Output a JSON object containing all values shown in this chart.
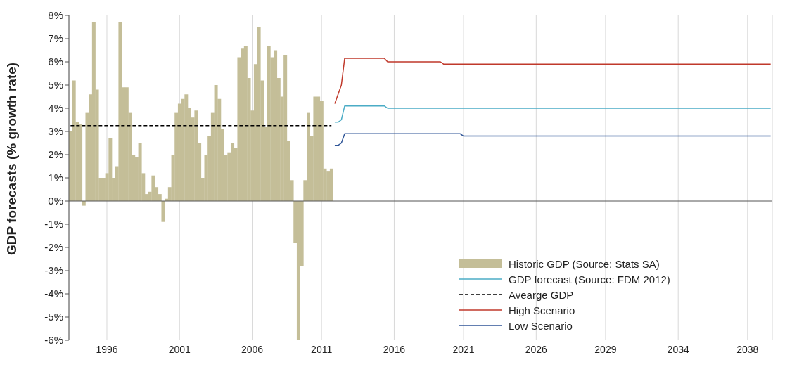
{
  "chart_data": {
    "type": "bar",
    "ylabel": "GDP forecasts (% growth rate)",
    "categories": [
      null,
      null,
      null,
      null,
      null,
      null,
      null,
      null,
      null,
      null,
      null,
      "1996",
      null,
      null,
      null,
      null,
      null,
      null,
      null,
      null,
      null,
      null,
      null,
      null,
      null,
      null,
      null,
      null,
      null,
      null,
      null,
      null,
      null,
      "2001",
      null,
      null,
      null,
      null,
      null,
      null,
      null,
      null,
      null,
      null,
      null,
      null,
      null,
      null,
      null,
      null,
      null,
      null,
      null,
      null,
      null,
      "2006",
      null,
      null,
      null,
      null,
      null,
      null,
      null,
      null,
      null,
      null,
      null,
      null,
      null,
      null,
      null,
      null,
      null,
      null,
      null,
      null,
      "2011",
      null,
      null,
      null,
      null,
      null,
      null,
      null,
      null,
      null,
      null,
      null,
      null,
      null,
      null,
      null,
      null,
      null,
      null,
      null,
      null,
      null,
      "2016",
      null,
      null,
      null,
      null,
      null,
      null,
      null,
      null,
      null,
      null,
      null,
      null,
      null,
      null,
      null,
      null,
      null,
      null,
      null,
      null,
      "2021",
      null,
      null,
      null,
      null,
      null,
      null,
      null,
      null,
      null,
      null,
      null,
      null,
      null,
      null,
      null,
      null,
      null,
      null,
      null,
      null,
      null,
      "2026",
      null,
      null,
      null,
      null,
      null,
      null,
      null,
      null,
      null,
      null,
      null,
      null,
      null,
      null,
      null,
      null,
      null,
      null,
      null,
      null,
      "2029",
      null,
      null,
      null,
      null,
      null,
      null,
      null,
      null,
      null,
      null,
      null,
      null,
      null,
      null,
      null,
      null,
      null,
      null,
      null,
      null,
      null,
      "2034",
      null,
      null,
      null,
      null,
      null,
      null,
      null,
      null,
      null,
      null,
      null,
      null,
      null,
      null,
      null,
      null,
      null,
      null,
      null,
      null,
      "2038",
      null,
      null,
      null,
      null,
      null,
      null,
      null
    ],
    "series": [
      {
        "name": "Historic GDP (Source: Stats SA)",
        "color": "#c4be98",
        "values": [
          3.0,
          5.2,
          3.4,
          3.3,
          -0.2,
          3.8,
          4.6,
          7.7,
          4.8,
          1.0,
          1.0,
          1.2,
          2.7,
          1.0,
          1.5,
          7.7,
          4.9,
          4.9,
          3.8,
          2.0,
          1.9,
          2.5,
          1.2,
          0.3,
          0.4,
          1.1,
          0.6,
          0.3,
          -0.9,
          0.1,
          0.6,
          2.0,
          3.8,
          4.2,
          4.4,
          4.6,
          4.0,
          3.6,
          3.9,
          2.5,
          1.0,
          2.0,
          2.8,
          3.8,
          5.0,
          4.4,
          3.1,
          2.0,
          2.1,
          2.5,
          2.3,
          6.2,
          6.6,
          6.7,
          5.3,
          3.9,
          5.9,
          7.5,
          5.2,
          3.2,
          6.7,
          6.2,
          6.5,
          5.3,
          4.5,
          6.3,
          2.6,
          0.9,
          -1.8,
          -6.0,
          -2.8,
          0.9,
          3.8,
          2.8,
          4.5,
          4.5,
          4.3,
          1.4,
          1.3,
          1.4,
          null,
          null,
          null,
          null,
          null,
          null,
          null,
          null,
          null,
          null,
          null,
          null,
          null,
          null,
          null,
          null,
          null,
          null,
          null,
          null,
          null,
          null,
          null,
          null,
          null,
          null,
          null,
          null,
          null,
          null,
          null,
          null,
          null,
          null,
          null,
          null,
          null,
          null,
          null,
          null,
          null,
          null,
          null,
          null,
          null,
          null,
          null,
          null,
          null,
          null,
          null,
          null,
          null,
          null,
          null,
          null,
          null,
          null,
          null,
          null,
          null,
          null,
          null,
          null,
          null,
          null,
          null,
          null,
          null,
          null,
          null,
          null,
          null,
          null,
          null,
          null,
          null,
          null,
          null,
          null,
          null,
          null,
          null,
          null,
          null,
          null,
          null,
          null,
          null,
          null,
          null,
          null,
          null,
          null,
          null,
          null,
          null,
          null,
          null,
          null,
          null,
          null,
          null,
          null,
          null,
          null,
          null,
          null,
          null,
          null,
          null,
          null,
          null,
          null,
          null,
          null,
          null,
          null,
          null,
          null,
          null,
          null,
          null,
          null,
          null,
          null,
          null,
          null,
          null,
          null,
          null,
          null,
          null
        ]
      },
      {
        "name": "GDP forecast (Source: FDM 2012)",
        "type": "line",
        "color": "#4bacc6",
        "values": [
          null,
          null,
          null,
          null,
          null,
          null,
          null,
          null,
          null,
          null,
          null,
          null,
          null,
          null,
          null,
          null,
          null,
          null,
          null,
          null,
          null,
          null,
          null,
          null,
          null,
          null,
          null,
          null,
          null,
          null,
          null,
          null,
          null,
          null,
          null,
          null,
          null,
          null,
          null,
          null,
          null,
          null,
          null,
          null,
          null,
          null,
          null,
          null,
          null,
          null,
          null,
          null,
          null,
          null,
          null,
          null,
          null,
          null,
          null,
          null,
          null,
          null,
          null,
          null,
          null,
          null,
          null,
          null,
          null,
          null,
          null,
          null,
          null,
          null,
          null,
          null,
          null,
          null,
          null,
          null,
          3.4,
          3.4,
          3.5,
          4.1,
          4.1,
          4.1,
          4.1,
          4.1,
          4.1,
          4.1,
          4.1,
          4.1,
          4.1,
          4.1,
          4.1,
          4.1,
          4.0,
          4.0,
          4.0,
          4.0,
          4.0,
          4.0,
          4.0,
          4.0,
          4.0,
          4.0,
          4.0,
          4.0,
          4.0,
          4.0,
          4.0,
          4.0,
          4.0,
          4.0,
          4.0,
          4.0,
          4.0,
          4.0,
          4.0,
          4.0,
          4.0,
          4.0,
          4.0,
          4.0,
          4.0,
          4.0,
          4.0,
          4.0,
          4.0,
          4.0,
          4.0,
          4.0,
          4.0,
          4.0,
          4.0,
          4.0,
          4.0,
          4.0,
          4.0,
          4.0,
          4.0,
          4.0,
          4.0,
          4.0,
          4.0,
          4.0,
          4.0,
          4.0,
          4.0,
          4.0,
          4.0,
          4.0,
          4.0,
          4.0,
          4.0,
          4.0,
          4.0,
          4.0,
          4.0,
          4.0,
          4.0,
          4.0,
          4.0,
          4.0,
          4.0,
          4.0,
          4.0,
          4.0,
          4.0,
          4.0,
          4.0,
          4.0,
          4.0,
          4.0,
          4.0,
          4.0,
          4.0,
          4.0,
          4.0,
          4.0,
          4.0,
          4.0,
          4.0,
          4.0,
          4.0,
          4.0,
          4.0,
          4.0,
          4.0,
          4.0,
          4.0,
          4.0,
          4.0,
          4.0,
          4.0,
          4.0,
          4.0,
          4.0,
          4.0,
          4.0,
          4.0,
          4.0,
          4.0,
          4.0,
          4.0,
          4.0,
          4.0,
          4.0,
          4.0,
          4.0,
          4.0,
          4.0,
          4.0
        ]
      },
      {
        "name": "Avearge GDP",
        "type": "line",
        "color": "#000000",
        "line_style": "dashed",
        "values": [
          3.25,
          3.25,
          3.25,
          3.25,
          3.25,
          3.25,
          3.25,
          3.25,
          3.25,
          3.25,
          3.25,
          3.25,
          3.25,
          3.25,
          3.25,
          3.25,
          3.25,
          3.25,
          3.25,
          3.25,
          3.25,
          3.25,
          3.25,
          3.25,
          3.25,
          3.25,
          3.25,
          3.25,
          3.25,
          3.25,
          3.25,
          3.25,
          3.25,
          3.25,
          3.25,
          3.25,
          3.25,
          3.25,
          3.25,
          3.25,
          3.25,
          3.25,
          3.25,
          3.25,
          3.25,
          3.25,
          3.25,
          3.25,
          3.25,
          3.25,
          3.25,
          3.25,
          3.25,
          3.25,
          3.25,
          3.25,
          3.25,
          3.25,
          3.25,
          3.25,
          3.25,
          3.25,
          3.25,
          3.25,
          3.25,
          3.25,
          3.25,
          3.25,
          3.25,
          3.25,
          3.25,
          3.25,
          3.25,
          3.25,
          3.25,
          3.25,
          3.25,
          3.25,
          3.25,
          3.25,
          null,
          null,
          null,
          null,
          null,
          null,
          null,
          null,
          null,
          null,
          null,
          null,
          null,
          null,
          null,
          null,
          null,
          null,
          null,
          null,
          null,
          null,
          null,
          null,
          null,
          null,
          null,
          null,
          null,
          null,
          null,
          null,
          null,
          null,
          null,
          null,
          null,
          null,
          null,
          null,
          null,
          null,
          null,
          null,
          null,
          null,
          null,
          null,
          null,
          null,
          null,
          null,
          null,
          null,
          null,
          null,
          null,
          null,
          null,
          null,
          null,
          null,
          null,
          null,
          null,
          null,
          null,
          null,
          null,
          null,
          null,
          null,
          null,
          null,
          null,
          null,
          null,
          null,
          null,
          null,
          null,
          null,
          null,
          null,
          null,
          null,
          null,
          null,
          null,
          null,
          null,
          null,
          null,
          null,
          null,
          null,
          null,
          null,
          null,
          null,
          null,
          null,
          null,
          null,
          null,
          null,
          null,
          null,
          null,
          null,
          null,
          null,
          null,
          null,
          null,
          null,
          null,
          null,
          null,
          null,
          null,
          null,
          null,
          null,
          null,
          null,
          null,
          null,
          null,
          null,
          null,
          null,
          null
        ]
      },
      {
        "name": "High Scenario",
        "type": "line",
        "color": "#c0392b",
        "values": [
          null,
          null,
          null,
          null,
          null,
          null,
          null,
          null,
          null,
          null,
          null,
          null,
          null,
          null,
          null,
          null,
          null,
          null,
          null,
          null,
          null,
          null,
          null,
          null,
          null,
          null,
          null,
          null,
          null,
          null,
          null,
          null,
          null,
          null,
          null,
          null,
          null,
          null,
          null,
          null,
          null,
          null,
          null,
          null,
          null,
          null,
          null,
          null,
          null,
          null,
          null,
          null,
          null,
          null,
          null,
          null,
          null,
          null,
          null,
          null,
          null,
          null,
          null,
          null,
          null,
          null,
          null,
          null,
          null,
          null,
          null,
          null,
          null,
          null,
          null,
          null,
          null,
          null,
          null,
          null,
          4.2,
          4.6,
          5.0,
          6.15,
          6.15,
          6.15,
          6.15,
          6.15,
          6.15,
          6.15,
          6.15,
          6.15,
          6.15,
          6.15,
          6.15,
          6.15,
          6.0,
          6.0,
          6.0,
          6.0,
          6.0,
          6.0,
          6.0,
          6.0,
          6.0,
          6.0,
          6.0,
          6.0,
          6.0,
          6.0,
          6.0,
          6.0,
          6.0,
          5.9,
          5.9,
          5.9,
          5.9,
          5.9,
          5.9,
          5.9,
          5.9,
          5.9,
          5.9,
          5.9,
          5.9,
          5.9,
          5.9,
          5.9,
          5.9,
          5.9,
          5.9,
          5.9,
          5.9,
          5.9,
          5.9,
          5.9,
          5.9,
          5.9,
          5.9,
          5.9,
          5.9,
          5.9,
          5.9,
          5.9,
          5.9,
          5.9,
          5.9,
          5.9,
          5.9,
          5.9,
          5.9,
          5.9,
          5.9,
          5.9,
          5.9,
          5.9,
          5.9,
          5.9,
          5.9,
          5.9,
          5.9,
          5.9,
          5.9,
          5.9,
          5.9,
          5.9,
          5.9,
          5.9,
          5.9,
          5.9,
          5.9,
          5.9,
          5.9,
          5.9,
          5.9,
          5.9,
          5.9,
          5.9,
          5.9,
          5.9,
          5.9,
          5.9,
          5.9,
          5.9,
          5.9,
          5.9,
          5.9,
          5.9,
          5.9,
          5.9,
          5.9,
          5.9,
          5.9,
          5.9,
          5.9,
          5.9,
          5.9,
          5.9,
          5.9,
          5.9,
          5.9,
          5.9,
          5.9,
          5.9,
          5.9,
          5.9,
          5.9,
          5.9,
          5.9,
          5.9,
          5.9,
          5.9,
          5.9
        ]
      },
      {
        "name": "Low Scenario",
        "type": "line",
        "color": "#2f5597",
        "values": [
          null,
          null,
          null,
          null,
          null,
          null,
          null,
          null,
          null,
          null,
          null,
          null,
          null,
          null,
          null,
          null,
          null,
          null,
          null,
          null,
          null,
          null,
          null,
          null,
          null,
          null,
          null,
          null,
          null,
          null,
          null,
          null,
          null,
          null,
          null,
          null,
          null,
          null,
          null,
          null,
          null,
          null,
          null,
          null,
          null,
          null,
          null,
          null,
          null,
          null,
          null,
          null,
          null,
          null,
          null,
          null,
          null,
          null,
          null,
          null,
          null,
          null,
          null,
          null,
          null,
          null,
          null,
          null,
          null,
          null,
          null,
          null,
          null,
          null,
          null,
          null,
          null,
          null,
          null,
          null,
          2.4,
          2.4,
          2.5,
          2.9,
          2.9,
          2.9,
          2.9,
          2.9,
          2.9,
          2.9,
          2.9,
          2.9,
          2.9,
          2.9,
          2.9,
          2.9,
          2.9,
          2.9,
          2.9,
          2.9,
          2.9,
          2.9,
          2.9,
          2.9,
          2.9,
          2.9,
          2.9,
          2.9,
          2.9,
          2.9,
          2.9,
          2.9,
          2.9,
          2.9,
          2.9,
          2.9,
          2.9,
          2.9,
          2.9,
          2.8,
          2.8,
          2.8,
          2.8,
          2.8,
          2.8,
          2.8,
          2.8,
          2.8,
          2.8,
          2.8,
          2.8,
          2.8,
          2.8,
          2.8,
          2.8,
          2.8,
          2.8,
          2.8,
          2.8,
          2.8,
          2.8,
          2.8,
          2.8,
          2.8,
          2.8,
          2.8,
          2.8,
          2.8,
          2.8,
          2.8,
          2.8,
          2.8,
          2.8,
          2.8,
          2.8,
          2.8,
          2.8,
          2.8,
          2.8,
          2.8,
          2.8,
          2.8,
          2.8,
          2.8,
          2.8,
          2.8,
          2.8,
          2.8,
          2.8,
          2.8,
          2.8,
          2.8,
          2.8,
          2.8,
          2.8,
          2.8,
          2.8,
          2.8,
          2.8,
          2.8,
          2.8,
          2.8,
          2.8,
          2.8,
          2.8,
          2.8,
          2.8,
          2.8,
          2.8,
          2.8,
          2.8,
          2.8,
          2.8,
          2.8,
          2.8,
          2.8,
          2.8,
          2.8,
          2.8,
          2.8,
          2.8,
          2.8,
          2.8,
          2.8,
          2.8,
          2.8,
          2.8,
          2.8,
          2.8,
          2.8,
          2.8,
          2.8,
          2.8
        ]
      }
    ],
    "ylim": [
      -6,
      8
    ],
    "yticks": [
      {
        "value": -6,
        "label": "-6%"
      },
      {
        "value": -5,
        "label": "-5%"
      },
      {
        "value": -4,
        "label": "-4%"
      },
      {
        "value": -3,
        "label": "-3%"
      },
      {
        "value": -2,
        "label": "-2%"
      },
      {
        "value": -1,
        "label": "-1%"
      },
      {
        "value": 0,
        "label": "0%"
      },
      {
        "value": 1,
        "label": "1%"
      },
      {
        "value": 2,
        "label": "2%"
      },
      {
        "value": 3,
        "label": "3%"
      },
      {
        "value": 4,
        "label": "4%"
      },
      {
        "value": 5,
        "label": "5%"
      },
      {
        "value": 6,
        "label": "6%"
      },
      {
        "value": 7,
        "label": "7%"
      },
      {
        "value": 8,
        "label": "8%"
      }
    ],
    "grid": "x",
    "legend": "bottom right",
    "marker": "none"
  }
}
